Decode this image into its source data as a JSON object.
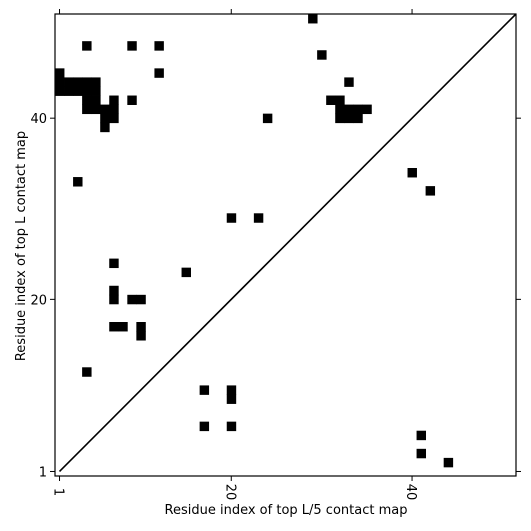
{
  "chart_data": {
    "type": "heatmap",
    "title": "",
    "xlabel": "Residue index of top L/5 contact map",
    "ylabel": "Residue index of top L contact map",
    "xlim": [
      0.5,
      51.5
    ],
    "ylim": [
      0.5,
      51.5
    ],
    "x_ticks": [
      1,
      20,
      40
    ],
    "y_ticks": [
      1,
      20,
      40
    ],
    "grid": false,
    "diagonal": true,
    "upper_left_contacts": [
      [
        1,
        45
      ],
      [
        1,
        44
      ],
      [
        1,
        43
      ],
      [
        2,
        44
      ],
      [
        2,
        43
      ],
      [
        3,
        44
      ],
      [
        3,
        43
      ],
      [
        4,
        44
      ],
      [
        4,
        43
      ],
      [
        4,
        42
      ],
      [
        4,
        41
      ],
      [
        5,
        44
      ],
      [
        5,
        43
      ],
      [
        5,
        42
      ],
      [
        5,
        41
      ],
      [
        6,
        41
      ],
      [
        6,
        40
      ],
      [
        6,
        39
      ],
      [
        7,
        42
      ],
      [
        7,
        41
      ],
      [
        7,
        40
      ],
      [
        4,
        48
      ],
      [
        9,
        48
      ],
      [
        12,
        48
      ],
      [
        12,
        45
      ],
      [
        9,
        42
      ],
      [
        3,
        33
      ],
      [
        24,
        40
      ],
      [
        29,
        51
      ],
      [
        30,
        47
      ],
      [
        31,
        42
      ],
      [
        32,
        42
      ],
      [
        33,
        44
      ],
      [
        33,
        41
      ],
      [
        32,
        41
      ],
      [
        32,
        40
      ],
      [
        33,
        40
      ],
      [
        34,
        41
      ],
      [
        34,
        40
      ],
      [
        35,
        41
      ],
      [
        20,
        29
      ],
      [
        23,
        29
      ],
      [
        15,
        23
      ],
      [
        7,
        24
      ],
      [
        7,
        21
      ],
      [
        7,
        20
      ],
      [
        9,
        20
      ],
      [
        10,
        20
      ],
      [
        7,
        17
      ],
      [
        8,
        17
      ],
      [
        10,
        17
      ],
      [
        10,
        16
      ],
      [
        4,
        12
      ],
      [
        17,
        10
      ],
      [
        20,
        10
      ],
      [
        20,
        9
      ],
      [
        17,
        6
      ],
      [
        20,
        6
      ]
    ],
    "lower_right_contacts": [
      [
        40,
        34
      ],
      [
        42,
        32
      ],
      [
        41,
        5
      ],
      [
        41,
        3
      ],
      [
        44,
        2
      ]
    ]
  }
}
